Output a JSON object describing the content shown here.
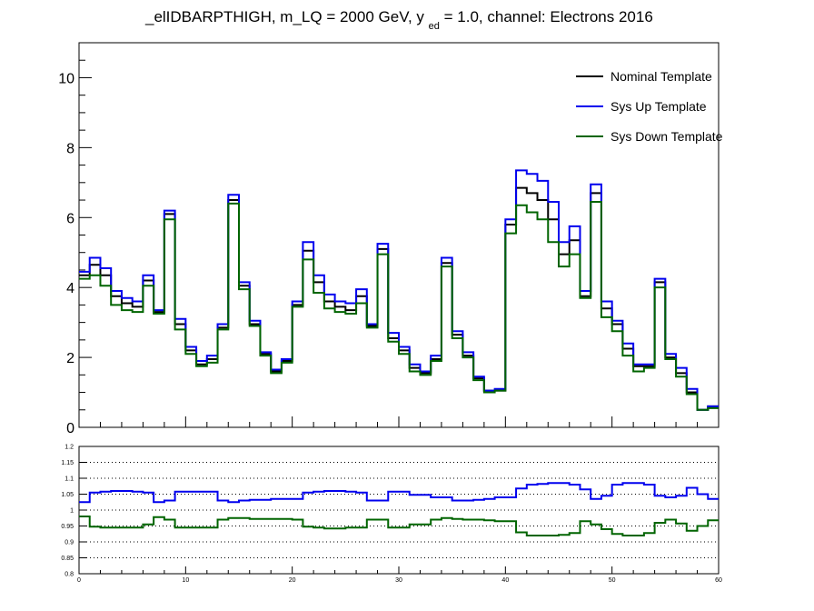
{
  "chart_data": [
    {
      "type": "line",
      "drawstyle": "histogram-steps",
      "title": "_elIDBARPTHIGH, m_LQ = 2000 GeV, y",
      "title_subscript": "ed",
      "title_suffix": " = 1.0, channel: Electrons 2016",
      "xlim": [
        0,
        60
      ],
      "ylim": [
        0,
        11
      ],
      "yticks": [
        0,
        2,
        4,
        6,
        8,
        10
      ],
      "grid": false,
      "legend_position": "top-right",
      "series": [
        {
          "name": "Nominal Template",
          "color": "#000000",
          "values": [
            4.35,
            4.65,
            4.35,
            3.75,
            3.55,
            3.45,
            4.2,
            3.3,
            6.1,
            2.95,
            2.2,
            1.8,
            1.95,
            2.85,
            6.5,
            4.05,
            2.95,
            2.1,
            1.6,
            1.9,
            3.5,
            5.05,
            4.15,
            3.6,
            3.45,
            3.35,
            3.75,
            2.9,
            5.1,
            2.55,
            2.2,
            1.7,
            1.55,
            1.95,
            4.7,
            2.65,
            2.05,
            1.4,
            1.05,
            1.05,
            5.8,
            6.85,
            6.7,
            6.5,
            5.95,
            4.95,
            5.35,
            3.75,
            6.7,
            3.4,
            2.95,
            2.25,
            1.75,
            1.75,
            4.15,
            2.0,
            1.55,
            1.0,
            0.5,
            0.6
          ]
        },
        {
          "name": "Sys Up Template",
          "color": "#0000ee",
          "values": [
            4.45,
            4.85,
            4.55,
            3.9,
            3.7,
            3.6,
            4.35,
            3.35,
            6.2,
            3.1,
            2.3,
            1.9,
            2.05,
            2.95,
            6.65,
            4.15,
            3.05,
            2.15,
            1.65,
            1.95,
            3.6,
            5.3,
            4.35,
            3.8,
            3.6,
            3.55,
            3.95,
            2.95,
            5.25,
            2.7,
            2.3,
            1.8,
            1.6,
            2.05,
            4.85,
            2.75,
            2.15,
            1.45,
            1.05,
            1.1,
            5.95,
            7.35,
            7.25,
            7.05,
            6.45,
            5.3,
            5.75,
            3.9,
            6.95,
            3.6,
            3.05,
            2.4,
            1.8,
            1.8,
            4.25,
            2.1,
            1.7,
            1.1,
            0.5,
            0.6
          ]
        },
        {
          "name": "Sys Down Template",
          "color": "#006400",
          "values": [
            4.25,
            4.35,
            4.05,
            3.5,
            3.35,
            3.3,
            4.05,
            3.25,
            5.95,
            2.8,
            2.1,
            1.75,
            1.85,
            2.8,
            6.4,
            3.95,
            2.9,
            2.05,
            1.55,
            1.85,
            3.45,
            4.8,
            3.85,
            3.4,
            3.3,
            3.25,
            3.55,
            2.85,
            4.95,
            2.45,
            2.1,
            1.6,
            1.5,
            1.9,
            4.6,
            2.55,
            2.0,
            1.35,
            1.0,
            1.05,
            5.55,
            6.35,
            6.15,
            5.95,
            5.3,
            4.6,
            4.95,
            3.7,
            6.45,
            3.15,
            2.75,
            2.05,
            1.6,
            1.7,
            4.0,
            1.95,
            1.45,
            0.95,
            0.5,
            0.55
          ]
        }
      ]
    },
    {
      "type": "line",
      "drawstyle": "histogram-steps",
      "xlim": [
        0,
        60
      ],
      "ylim": [
        0.8,
        1.2
      ],
      "xticks": [
        0,
        10,
        20,
        30,
        40,
        50,
        60
      ],
      "yticks": [
        "0.8",
        "0.85",
        "0.9",
        "0.95",
        "1",
        "1.05",
        "1.1",
        "1.15",
        "1.2"
      ],
      "grid": "horizontal-dotted",
      "series": [
        {
          "color": "#0000ee",
          "values": [
            1.025,
            1.055,
            1.058,
            1.06,
            1.06,
            1.058,
            1.055,
            1.025,
            1.03,
            1.058,
            1.058,
            1.058,
            1.058,
            1.03,
            1.025,
            1.03,
            1.032,
            1.032,
            1.035,
            1.035,
            1.035,
            1.055,
            1.058,
            1.06,
            1.06,
            1.058,
            1.055,
            1.03,
            1.03,
            1.058,
            1.058,
            1.048,
            1.048,
            1.04,
            1.04,
            1.03,
            1.03,
            1.032,
            1.035,
            1.04,
            1.04,
            1.068,
            1.08,
            1.082,
            1.085,
            1.085,
            1.08,
            1.065,
            1.035,
            1.045,
            1.08,
            1.085,
            1.085,
            1.08,
            1.045,
            1.04,
            1.045,
            1.07,
            1.05,
            1.035
          ]
        },
        {
          "color": "#006400",
          "values": [
            0.98,
            0.948,
            0.945,
            0.945,
            0.945,
            0.945,
            0.955,
            0.978,
            0.97,
            0.945,
            0.945,
            0.945,
            0.945,
            0.97,
            0.975,
            0.975,
            0.972,
            0.972,
            0.972,
            0.972,
            0.97,
            0.948,
            0.945,
            0.942,
            0.942,
            0.945,
            0.945,
            0.97,
            0.97,
            0.945,
            0.945,
            0.955,
            0.955,
            0.97,
            0.975,
            0.972,
            0.97,
            0.97,
            0.968,
            0.965,
            0.965,
            0.93,
            0.92,
            0.92,
            0.92,
            0.922,
            0.928,
            0.965,
            0.955,
            0.94,
            0.925,
            0.92,
            0.92,
            0.928,
            0.96,
            0.97,
            0.958,
            0.935,
            0.95,
            0.968
          ]
        }
      ]
    }
  ]
}
